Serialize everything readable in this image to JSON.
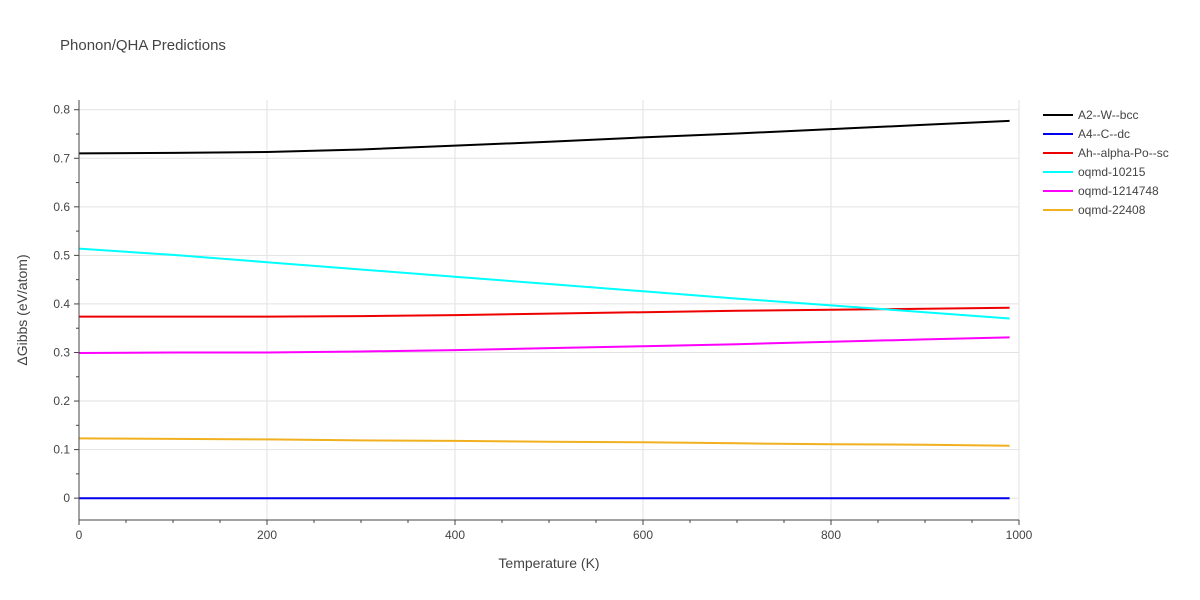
{
  "chart_data": {
    "type": "line",
    "title": "Phonon/QHA Predictions",
    "xlabel": "Temperature (K)",
    "ylabel": "ΔGibbs (eV/atom)",
    "xlim": [
      0,
      1000
    ],
    "ylim": [
      -0.045,
      0.82
    ],
    "xticks": [
      0,
      200,
      400,
      600,
      800,
      1000
    ],
    "xtick_labels": [
      "0",
      "200",
      "400",
      "600",
      "800",
      "1000"
    ],
    "yticks": [
      0,
      0.1,
      0.2,
      0.3,
      0.4,
      0.5,
      0.6,
      0.7,
      0.8
    ],
    "ytick_labels": [
      "0",
      "0.1",
      "0.2",
      "0.3",
      "0.4",
      "0.5",
      "0.6",
      "0.7",
      "0.8"
    ],
    "grid": true,
    "legend_position": "top-right outside",
    "series": [
      {
        "name": "A2--W--bcc",
        "color": "#000000",
        "x": [
          0,
          100,
          160,
          200,
          300,
          400,
          500,
          600,
          700,
          800,
          900,
          990
        ],
        "y": [
          0.71,
          0.711,
          0.712,
          0.713,
          0.718,
          0.726,
          0.734,
          0.743,
          0.751,
          0.76,
          0.769,
          0.777
        ]
      },
      {
        "name": "A4--C--dc",
        "color": "#0000ee",
        "x": [
          0,
          200,
          400,
          600,
          800,
          990
        ],
        "y": [
          0.0,
          0.0,
          0.0,
          0.0,
          0.0,
          0.0
        ]
      },
      {
        "name": "Ah--alpha-Po--sc",
        "color": "#ee0000",
        "x": [
          0,
          100,
          200,
          300,
          400,
          500,
          600,
          700,
          800,
          900,
          990
        ],
        "y": [
          0.374,
          0.374,
          0.374,
          0.375,
          0.377,
          0.38,
          0.383,
          0.386,
          0.388,
          0.39,
          0.392
        ]
      },
      {
        "name": "oqmd-10215",
        "color": "#00ffff",
        "x": [
          0,
          100,
          200,
          300,
          400,
          500,
          600,
          700,
          800,
          900,
          990
        ],
        "y": [
          0.514,
          0.501,
          0.486,
          0.471,
          0.456,
          0.441,
          0.426,
          0.411,
          0.397,
          0.383,
          0.37
        ]
      },
      {
        "name": "oqmd-1214748",
        "color": "#ff00ff",
        "x": [
          0,
          100,
          200,
          300,
          400,
          500,
          600,
          700,
          800,
          900,
          990
        ],
        "y": [
          0.299,
          0.3,
          0.3,
          0.302,
          0.305,
          0.309,
          0.313,
          0.317,
          0.322,
          0.327,
          0.331
        ]
      },
      {
        "name": "oqmd-22408",
        "color": "#f0b020",
        "x": [
          0,
          100,
          200,
          300,
          400,
          500,
          600,
          700,
          800,
          900,
          990
        ],
        "y": [
          0.123,
          0.122,
          0.121,
          0.119,
          0.118,
          0.116,
          0.115,
          0.113,
          0.111,
          0.11,
          0.108
        ]
      }
    ]
  }
}
